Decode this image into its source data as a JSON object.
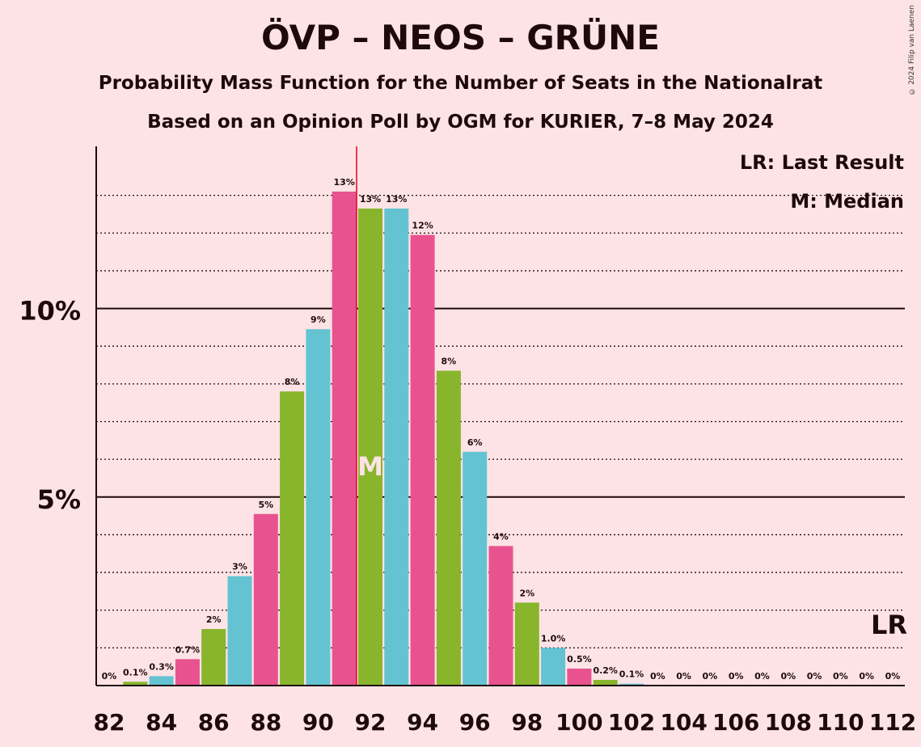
{
  "title": "ÖVP – NEOS – GRÜNE",
  "subtitle": "Probability Mass Function for the Number of Seats in the Nationalrat",
  "subtitle2": "Based on an Opinion Poll by OGM for KURIER, 7–8 May 2024",
  "copyright": "© 2024 Filip van Laenen",
  "legend": {
    "last_result": "LR: Last Result",
    "median": "M: Median"
  },
  "markers": {
    "lr_label": "LR",
    "median_label": "M"
  },
  "colors": {
    "background": "#fde3e6",
    "pink": "#e8538f",
    "green": "#88b52b",
    "blue": "#64c3d2",
    "marker_line": "#e8001c"
  },
  "chart_data": {
    "type": "bar",
    "x": [
      82,
      83,
      84,
      85,
      86,
      87,
      88,
      89,
      90,
      91,
      92,
      93,
      94,
      95,
      96,
      97,
      98,
      99,
      100,
      101,
      102,
      103,
      104,
      105,
      106,
      107,
      108,
      109,
      110,
      111,
      112
    ],
    "values": [
      0,
      0.1,
      0.25,
      0.7,
      1.5,
      2.9,
      4.55,
      7.8,
      9.45,
      13.1,
      12.65,
      12.65,
      11.95,
      8.35,
      6.2,
      3.7,
      2.2,
      1.0,
      0.45,
      0.15,
      0.05,
      0,
      0,
      0,
      0,
      0,
      0,
      0,
      0,
      0,
      0
    ],
    "data_labels": [
      "0%",
      "0.1%",
      "0.3%",
      "0.7%",
      "2%",
      "3%",
      "5%",
      "8%",
      "9%",
      "13%",
      "13%",
      "13%",
      "12%",
      "8%",
      "6%",
      "4%",
      "2%",
      "1.0%",
      "0.5%",
      "0.2%",
      "0.1%",
      "0%",
      "0%",
      "0%",
      "0%",
      "0%",
      "0%",
      "0%",
      "0%",
      "0%",
      "0%"
    ],
    "x_tick_labels": [
      "82",
      "84",
      "86",
      "88",
      "90",
      "92",
      "94",
      "96",
      "98",
      "100",
      "102",
      "104",
      "106",
      "108",
      "110",
      "112"
    ],
    "y_tick_labels": [
      "5%",
      "10%"
    ],
    "y_ticks": [
      5,
      10
    ],
    "ylim": [
      0,
      14.3
    ],
    "last_result_seat": 112,
    "median_seat": 92,
    "grid": "dotted every 1%, solid at 5% and 10%"
  }
}
